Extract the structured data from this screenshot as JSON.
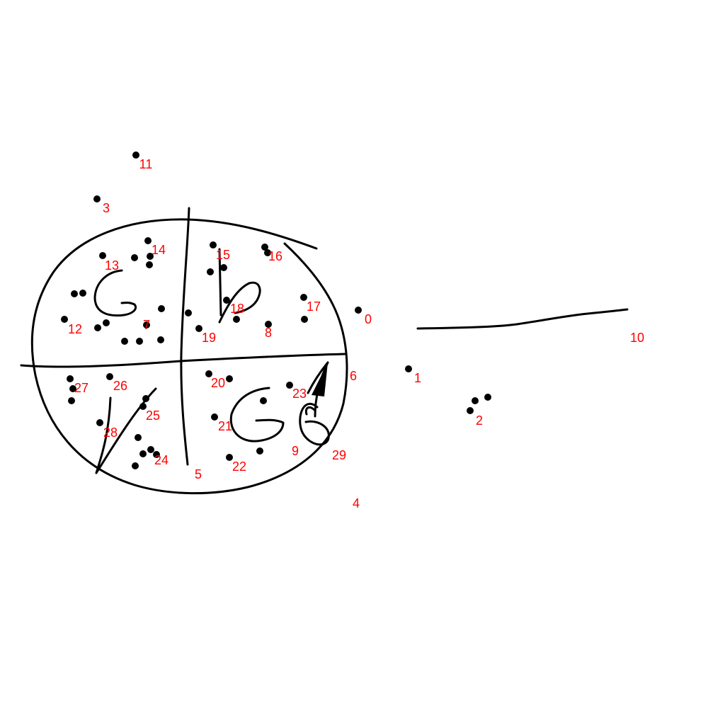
{
  "colors": {
    "background": "#ffffff",
    "ink": "#000000",
    "label": "#ff0000"
  },
  "labels": [
    "0",
    "1",
    "2",
    "3",
    "4",
    "5",
    "6",
    "7",
    "8",
    "9",
    "10",
    "11",
    "12",
    "13",
    "14",
    "15",
    "16",
    "17",
    "18",
    "19",
    "20",
    "21",
    "22",
    "23",
    "24",
    "25",
    "26",
    "27",
    "28",
    "29"
  ]
}
